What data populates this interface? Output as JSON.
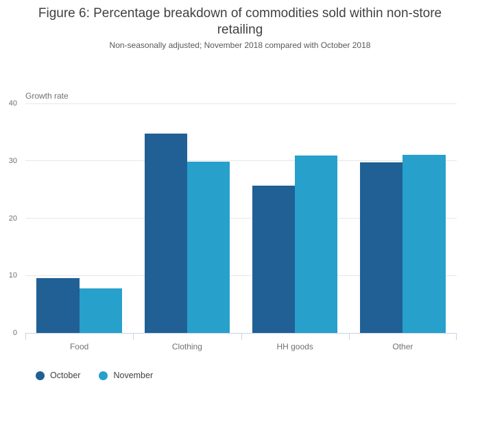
{
  "header": {
    "title": "Figure 6: Percentage breakdown of commodities sold within non-store retailing",
    "subtitle": "Non-seasonally adjusted; November 2018 compared with October 2018"
  },
  "chart_data": {
    "type": "bar",
    "title": "Figure 6: Percentage breakdown of commodities sold within non-store retailing",
    "subtitle": "Non-seasonally adjusted; November 2018 compared with October 2018",
    "y_axis_title": "Growth rate",
    "xlabel": "",
    "ylabel": "Growth rate",
    "categories": [
      "Food",
      "Clothing",
      "HH goods",
      "Other"
    ],
    "series": [
      {
        "name": "October",
        "color": "#206095",
        "values": [
          9.6,
          34.7,
          25.7,
          29.7
        ]
      },
      {
        "name": "November",
        "color": "#27a0cc",
        "values": [
          7.8,
          29.9,
          30.9,
          31.1
        ]
      }
    ],
    "ylim": [
      0,
      40
    ],
    "yticks": [
      0,
      10,
      20,
      30,
      40
    ],
    "grid": true,
    "legend_position": "bottom-left"
  },
  "colors": {
    "grid": "#e6e6e6",
    "axis": "#c8d2e4",
    "title_text": "#414042",
    "axis_text": "#707070"
  }
}
